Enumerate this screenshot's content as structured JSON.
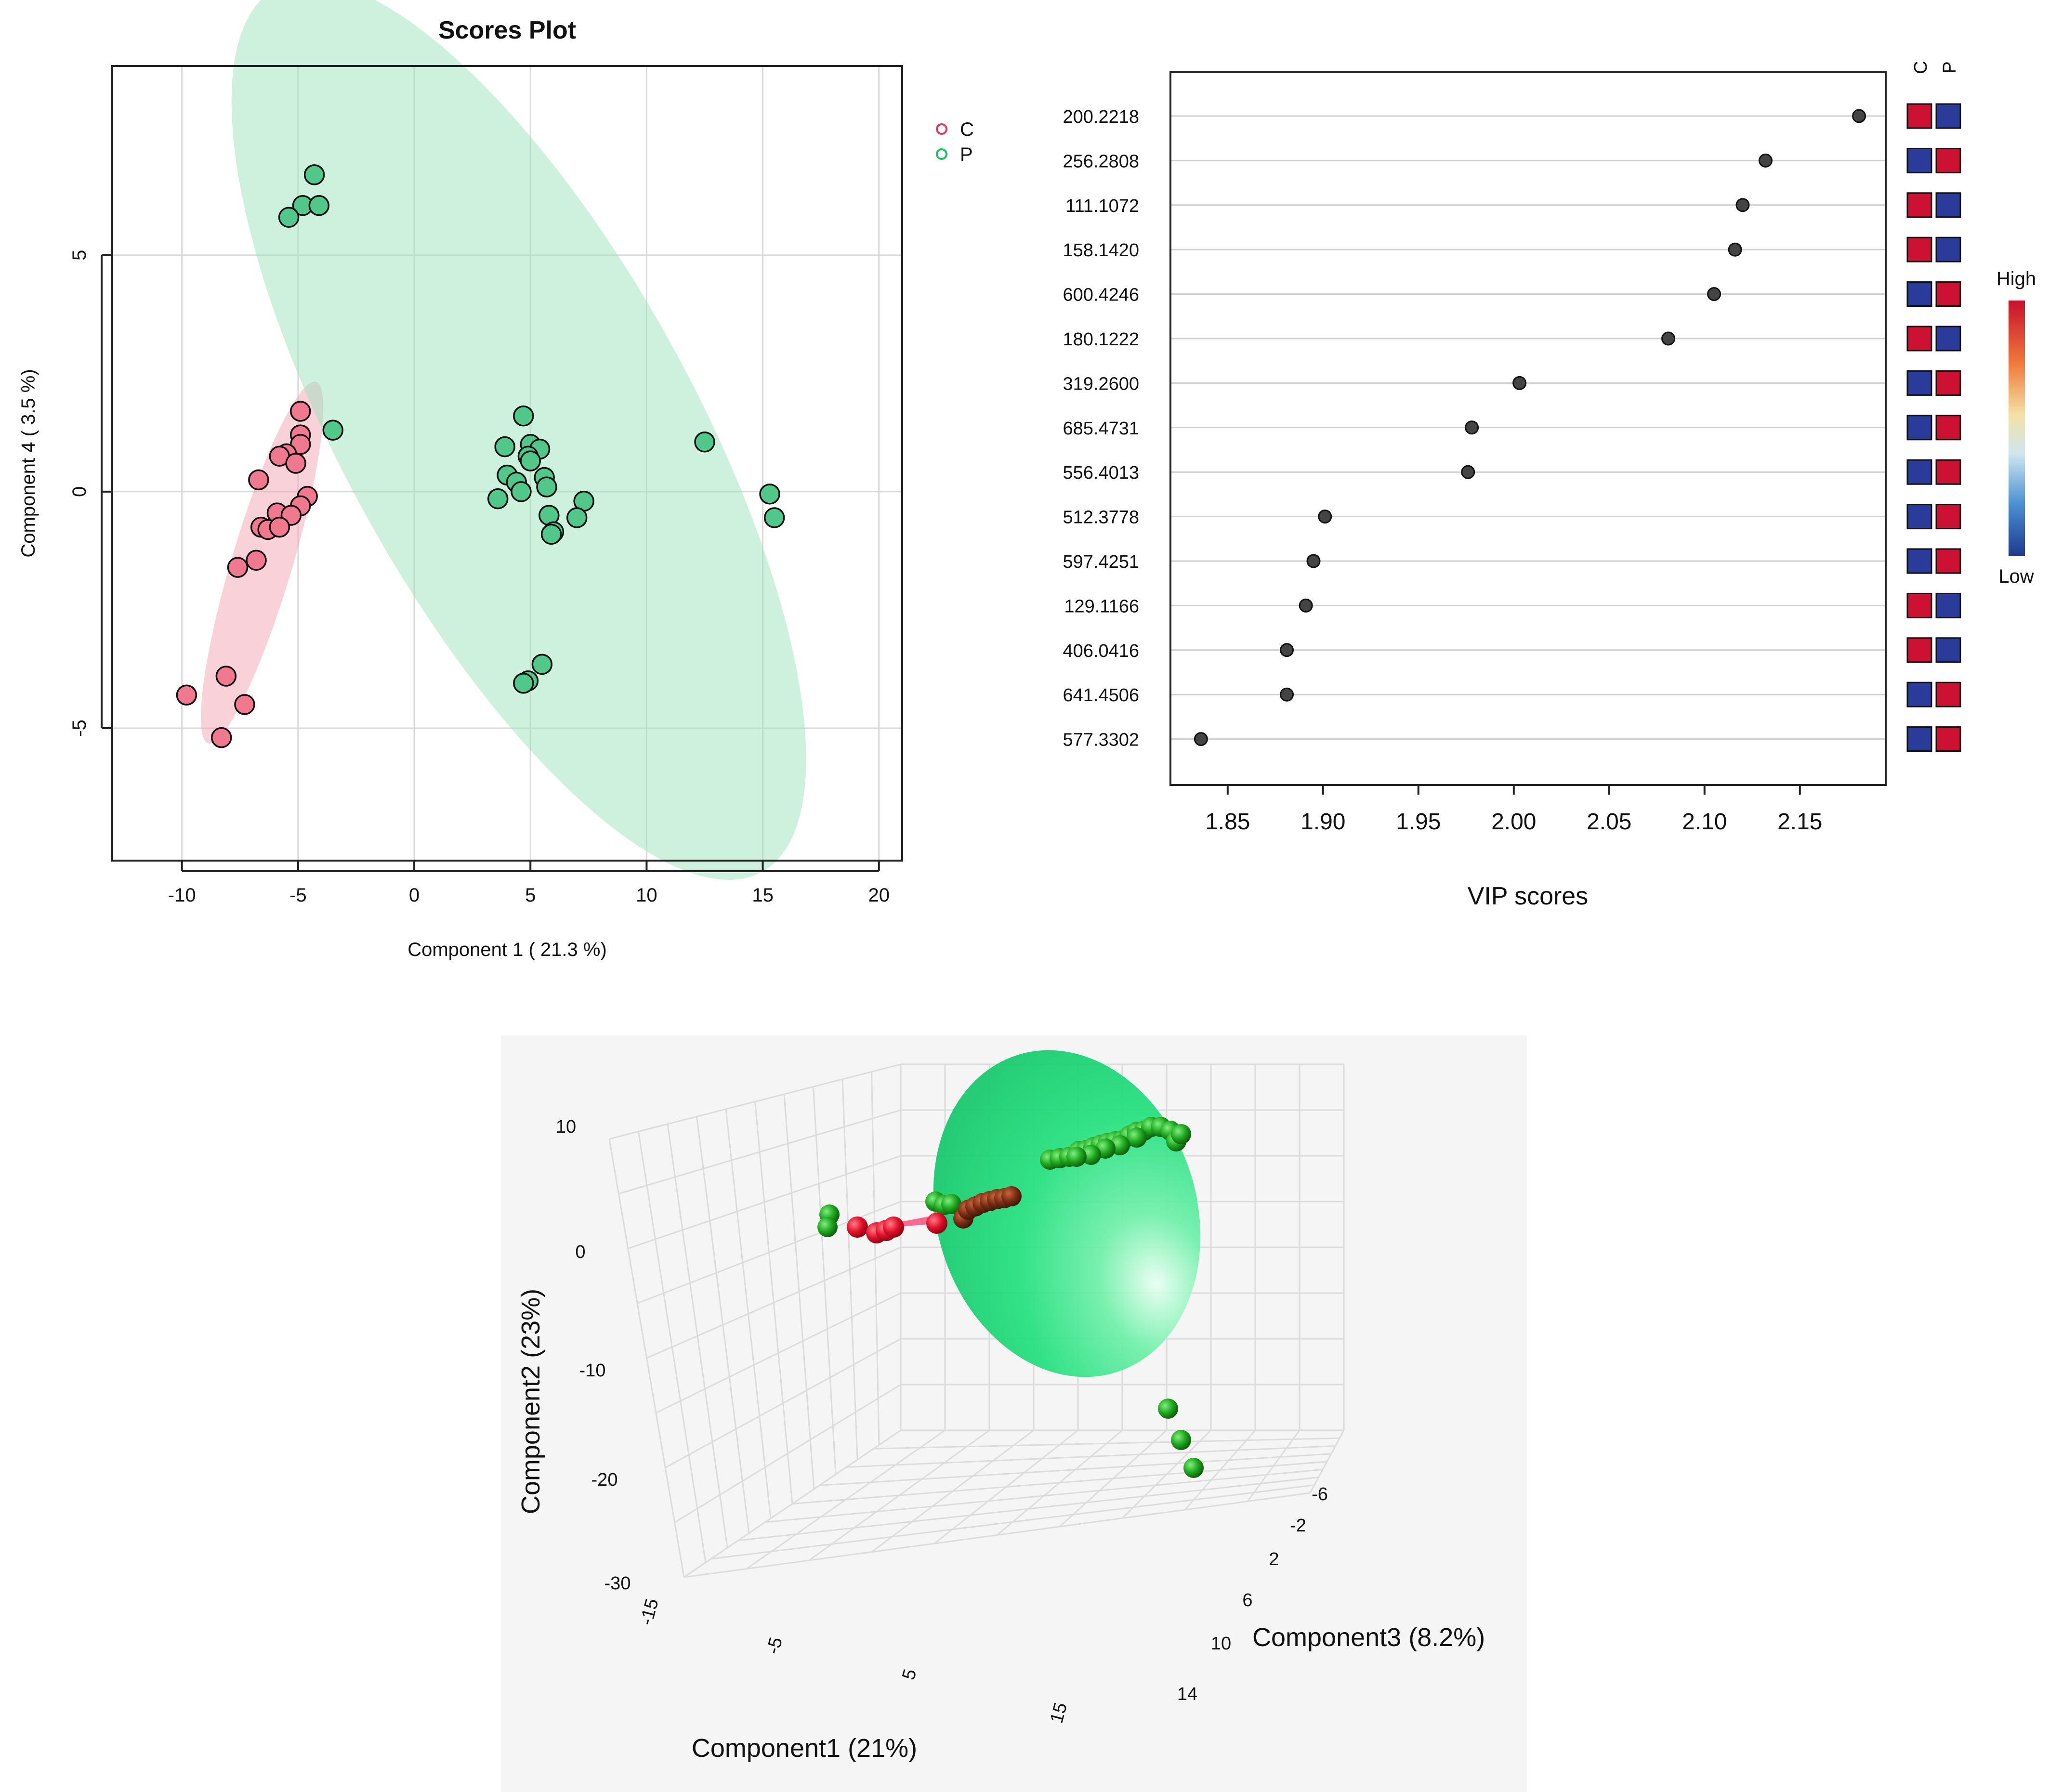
{
  "colors": {
    "group_c": "#f0788f",
    "group_p": "#52c78a",
    "ellipse_c": "#f4a3b4",
    "ellipse_p": "#9be3bc",
    "vip_dot": "#444444",
    "heat_high": "#cc1133",
    "heat_low": "#2a3b9a",
    "sphere_green": "#1e9a1e",
    "sphere_red": "#e0102a",
    "sphere_brown": "#7a2d12",
    "ellipsoid_3d": "#1fe37c"
  },
  "chart_data": [
    {
      "type": "scatter",
      "title": "Scores Plot",
      "xlabel": "Component 1 ( 21.3 %)",
      "ylabel": "Component 4 ( 3.5 %)",
      "xlim": [
        -13,
        21
      ],
      "ylim": [
        -7.8,
        9
      ],
      "xticks": [
        -10,
        -5,
        0,
        5,
        10,
        15,
        20
      ],
      "yticks": [
        -5,
        0,
        5
      ],
      "legend": [
        "C",
        "P"
      ],
      "grid": true,
      "series": [
        {
          "name": "C",
          "points": [
            [
              -4.9,
              1.7
            ],
            [
              -4.9,
              1.2
            ],
            [
              -4.9,
              1.0
            ],
            [
              -5.5,
              0.8
            ],
            [
              -5.8,
              0.75
            ],
            [
              -5.1,
              0.6
            ],
            [
              -6.7,
              0.25
            ],
            [
              -4.6,
              -0.1
            ],
            [
              -4.9,
              -0.3
            ],
            [
              -5.9,
              -0.45
            ],
            [
              -5.3,
              -0.5
            ],
            [
              -6.6,
              -0.75
            ],
            [
              -6.3,
              -0.8
            ],
            [
              -5.8,
              -0.75
            ],
            [
              -6.8,
              -1.45
            ],
            [
              -7.6,
              -1.6
            ],
            [
              -8.1,
              -3.9
            ],
            [
              -9.8,
              -4.3
            ],
            [
              -7.3,
              -4.5
            ],
            [
              -8.3,
              -5.2
            ]
          ]
        },
        {
          "name": "P",
          "points": [
            [
              -4.3,
              6.7
            ],
            [
              -4.8,
              6.05
            ],
            [
              -4.1,
              6.05
            ],
            [
              -5.4,
              5.8
            ],
            [
              -3.5,
              1.3
            ],
            [
              4.7,
              1.6
            ],
            [
              3.9,
              0.95
            ],
            [
              5.0,
              1.0
            ],
            [
              5.4,
              0.9
            ],
            [
              4.9,
              0.75
            ],
            [
              5.0,
              0.65
            ],
            [
              4.0,
              0.35
            ],
            [
              5.6,
              0.3
            ],
            [
              4.4,
              0.2
            ],
            [
              5.7,
              0.1
            ],
            [
              4.6,
              0.0
            ],
            [
              3.6,
              -0.15
            ],
            [
              7.3,
              -0.2
            ],
            [
              5.8,
              -0.5
            ],
            [
              7.0,
              -0.55
            ],
            [
              6.0,
              -0.85
            ],
            [
              5.9,
              -0.9
            ],
            [
              12.5,
              1.05
            ],
            [
              15.3,
              -0.05
            ],
            [
              15.5,
              -0.55
            ],
            [
              5.5,
              -3.65
            ],
            [
              4.9,
              -4.0
            ],
            [
              4.7,
              -4.05
            ]
          ]
        }
      ],
      "ellipses": [
        {
          "group": "C",
          "center": [
            -6.55,
            -1.5
          ],
          "rx": 4.5,
          "ry": 1.16,
          "angle_deg": 57
        },
        {
          "group": "P",
          "center": [
            4.5,
            1.3
          ],
          "rx": 14.6,
          "ry": 5.5,
          "angle_deg": -35
        }
      ]
    },
    {
      "type": "dot",
      "title": "",
      "xlabel": "VIP scores",
      "xlim": [
        1.82,
        2.195
      ],
      "xticks": [
        1.85,
        1.9,
        1.95,
        2.0,
        2.05,
        2.1,
        2.15
      ],
      "tick_labels": [
        "1.85",
        "1.90",
        "1.95",
        "2.00",
        "2.05",
        "2.10",
        "2.15"
      ],
      "categories": [
        "200.2218",
        "256.2808",
        "111.1072",
        "158.1420",
        "600.4246",
        "180.1222",
        "319.2600",
        "685.4731",
        "556.4013",
        "512.3778",
        "597.4251",
        "129.1166",
        "406.0416",
        "641.4506",
        "577.3302"
      ],
      "values": [
        2.181,
        2.132,
        2.12,
        2.116,
        2.105,
        2.081,
        2.003,
        1.978,
        1.976,
        1.901,
        1.895,
        1.891,
        1.881,
        1.881,
        1.836
      ],
      "heatmap": {
        "columns": [
          "C",
          "P"
        ],
        "cells": [
          [
            "high",
            "low"
          ],
          [
            "low",
            "high"
          ],
          [
            "high",
            "low"
          ],
          [
            "high",
            "low"
          ],
          [
            "low",
            "high"
          ],
          [
            "high",
            "low"
          ],
          [
            "low",
            "high"
          ],
          [
            "low",
            "high"
          ],
          [
            "low",
            "high"
          ],
          [
            "low",
            "high"
          ],
          [
            "low",
            "high"
          ],
          [
            "high",
            "low"
          ],
          [
            "high",
            "low"
          ],
          [
            "low",
            "high"
          ],
          [
            "low",
            "high"
          ]
        ]
      },
      "colorbar": {
        "high_label": "High",
        "low_label": "Low"
      }
    },
    {
      "type": "scatter3d",
      "xlabel": "Component1 (21%)",
      "ylabel": "Component2 (23%)",
      "zlabel": "Component3 (8.2%)",
      "x_ticks": [
        "-15",
        "-5",
        "5",
        "15"
      ],
      "y_ticks": [
        "10",
        "0",
        "-10",
        "-20",
        "-30"
      ],
      "z_ticks": [
        "-6",
        "-2",
        "2",
        "6",
        "10",
        "14"
      ]
    }
  ]
}
